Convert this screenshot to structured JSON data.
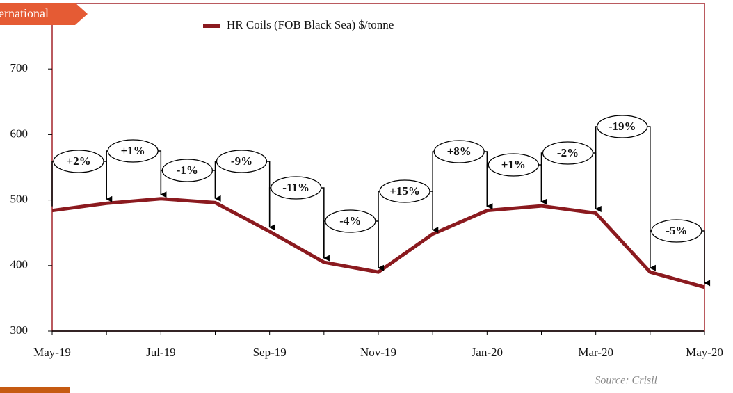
{
  "chart_data": {
    "type": "line",
    "tag": "International",
    "source": "Source: Crisil",
    "categories": [
      "May-19",
      null,
      "Jul-19",
      null,
      "Sep-19",
      null,
      "Nov-19",
      null,
      "Jan-20",
      null,
      "Mar-20",
      null,
      "May-20"
    ],
    "series": [
      {
        "name": "HR Coils (FOB Black Sea) $/tonne",
        "color": "#8b1a1f",
        "values": [
          484,
          495,
          502,
          496,
          452,
          405,
          390,
          448,
          484,
          491,
          480,
          390,
          367
        ]
      }
    ],
    "annotations": [
      "+2%",
      "+1%",
      "-1%",
      "-9%",
      "-11%",
      "-4%",
      "+15%",
      "+8%",
      "+1%",
      "-2%",
      "-19%",
      "-5%"
    ],
    "ylim": [
      300,
      800
    ],
    "yticks": [
      300,
      400,
      500,
      600,
      700
    ],
    "grid": false
  }
}
